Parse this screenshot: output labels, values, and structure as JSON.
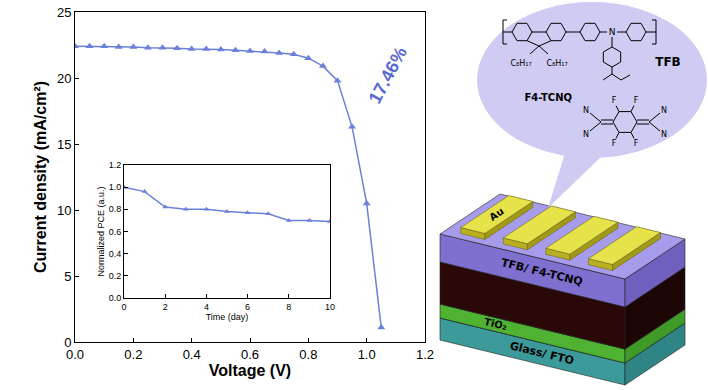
{
  "chart_data": [
    {
      "type": "line",
      "xlabel": "Voltage (V)",
      "ylabel": "Current density (mA/cm²)",
      "x": [
        0,
        0.05,
        0.1,
        0.15,
        0.2,
        0.25,
        0.3,
        0.35,
        0.4,
        0.45,
        0.5,
        0.55,
        0.6,
        0.65,
        0.7,
        0.75,
        0.8,
        0.85,
        0.9,
        0.95,
        1.0,
        1.05
      ],
      "values": [
        22.4,
        22.4,
        22.4,
        22.35,
        22.35,
        22.3,
        22.3,
        22.25,
        22.2,
        22.2,
        22.15,
        22.1,
        22.05,
        22.0,
        21.9,
        21.8,
        21.5,
        20.9,
        19.8,
        16.3,
        10.5,
        1.1
      ],
      "color": "#6b80d8",
      "marker": "triangle-up",
      "xlim": [
        0,
        1.2
      ],
      "ylim": [
        0,
        25
      ],
      "xticks": [
        {
          "value": 0,
          "label": "0.0"
        },
        0.2,
        0.4,
        0.6,
        0.8,
        {
          "value": 1,
          "label": "1.0"
        },
        1.2
      ],
      "yticks": [
        0,
        5,
        10,
        15,
        20,
        25
      ],
      "grid": false,
      "annotations": [
        {
          "text": "17.46%",
          "color": "#5a6ad0"
        }
      ]
    },
    {
      "type": "line",
      "xlabel": "Time (day)",
      "ylabel": "Normalized PCE (a.u.)",
      "x": [
        0,
        1,
        2,
        3,
        4,
        5,
        6,
        7,
        8,
        9,
        10
      ],
      "values": [
        1.0,
        0.96,
        0.82,
        0.8,
        0.8,
        0.78,
        0.77,
        0.76,
        0.7,
        0.7,
        0.69
      ],
      "color": "#6b80d8",
      "marker": "triangle-up",
      "xlim": [
        0,
        10
      ],
      "ylim": [
        0,
        1.2
      ],
      "xticks": [
        0,
        2,
        4,
        6,
        8,
        10
      ],
      "yticks": [
        {
          "value": 0,
          "label": "0.0"
        },
        0.2,
        0.4,
        0.6,
        0.8,
        {
          "value": 1,
          "label": "1.0"
        },
        1.2
      ],
      "grid": false
    }
  ],
  "diagram": {
    "bubble": {
      "tfb": {
        "label": "TFB",
        "atoms": [
          "C₈H₁₇",
          "C₈H₁₇",
          "N"
        ]
      },
      "f4tcnq": {
        "label": "F4-TCNQ",
        "atoms": [
          "N",
          "N",
          "F",
          "F",
          "F",
          "F",
          "N",
          "N"
        ]
      }
    },
    "stack": {
      "electrode": "Au",
      "layers": [
        "Glass/ FTO",
        "TiO₂",
        null,
        "TFB/ F4-TCNQ"
      ]
    }
  }
}
